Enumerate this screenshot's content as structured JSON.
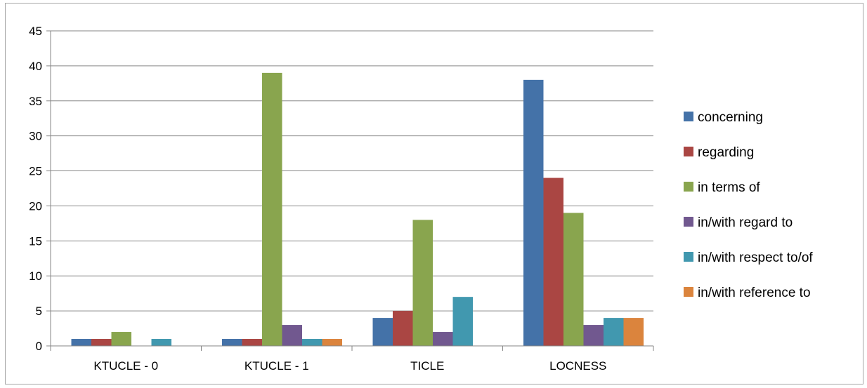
{
  "chart_data": {
    "type": "bar",
    "categories": [
      "KTUCLE - 0",
      "KTUCLE - 1",
      "TICLE",
      "LOCNESS"
    ],
    "series": [
      {
        "name": "concerning",
        "color": "#4472a8",
        "values": [
          1,
          1,
          4,
          38
        ]
      },
      {
        "name": "regarding",
        "color": "#aa4643",
        "values": [
          1,
          1,
          5,
          24
        ]
      },
      {
        "name": "in terms of",
        "color": "#89a54e",
        "values": [
          2,
          39,
          18,
          19
        ]
      },
      {
        "name": "in/with regard to",
        "color": "#71588f",
        "values": [
          0,
          3,
          2,
          3
        ]
      },
      {
        "name": "in/with respect to/of",
        "color": "#4198af",
        "values": [
          1,
          1,
          7,
          4
        ]
      },
      {
        "name": "in/with reference to",
        "color": "#db843d",
        "values": [
          0,
          1,
          0,
          4
        ]
      }
    ],
    "ylim": [
      0,
      45
    ],
    "yticks": [
      0,
      5,
      10,
      15,
      20,
      25,
      30,
      35,
      40,
      45
    ],
    "grid": true,
    "legend_position": "right"
  }
}
